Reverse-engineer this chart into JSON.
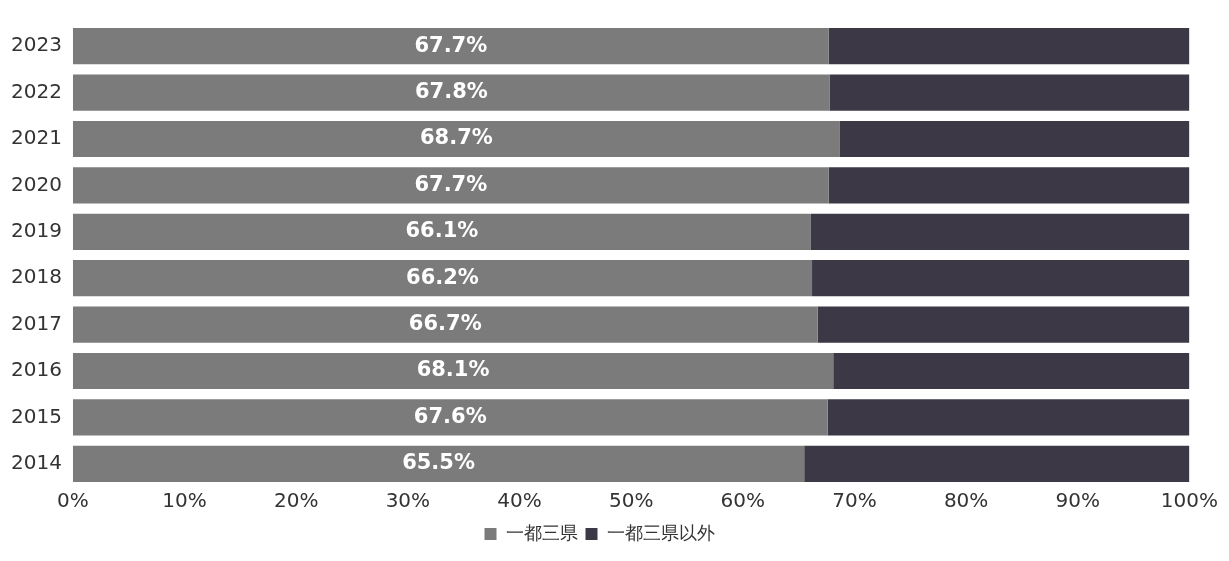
{
  "chart_data": {
    "type": "bar",
    "orientation": "horizontal",
    "stacked": true,
    "categories": [
      "2023",
      "2022",
      "2021",
      "2020",
      "2019",
      "2018",
      "2017",
      "2016",
      "2015",
      "2014"
    ],
    "series": [
      {
        "name": "一都三県",
        "color": "#7b7b7b",
        "values": [
          67.7,
          67.8,
          68.7,
          67.7,
          66.1,
          66.2,
          66.7,
          68.1,
          67.6,
          65.5
        ],
        "value_labels": [
          "67.7%",
          "67.8%",
          "68.7%",
          "67.7%",
          "66.1%",
          "66.2%",
          "66.7%",
          "68.1%",
          "67.6%",
          "65.5%"
        ]
      },
      {
        "name": "一都三県以外",
        "color": "#3d3846",
        "values": [
          32.3,
          32.2,
          31.3,
          32.3,
          33.9,
          33.8,
          33.3,
          31.9,
          32.4,
          34.5
        ]
      }
    ],
    "xlim": [
      0,
      100
    ],
    "xticks": [
      {
        "value": 0,
        "label": "0%"
      },
      {
        "value": 10,
        "label": "10%"
      },
      {
        "value": 20,
        "label": "20%"
      },
      {
        "value": 30,
        "label": "30%"
      },
      {
        "value": 40,
        "label": "40%"
      },
      {
        "value": 50,
        "label": "50%"
      },
      {
        "value": 60,
        "label": "60%"
      },
      {
        "value": 70,
        "label": "70%"
      },
      {
        "value": 80,
        "label": "80%"
      },
      {
        "value": 90,
        "label": "90%"
      },
      {
        "value": 100,
        "label": "100%"
      }
    ],
    "grid": false,
    "legend": "bottom"
  }
}
